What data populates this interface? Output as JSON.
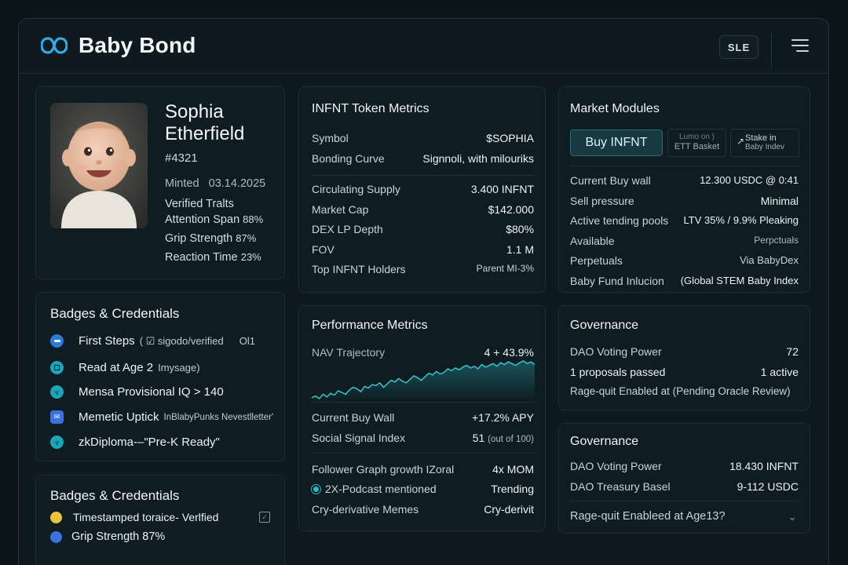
{
  "app": {
    "title": "Baby Bond",
    "sle_label": "SLE"
  },
  "profile": {
    "first_name": "Sophia",
    "last_name": "Etherfield",
    "token_id": "#4321",
    "minted_label": "Minted",
    "minted_date": "03.14.2025",
    "verified_traits": "Verified Tralts",
    "traits": [
      {
        "label": "Attention Span",
        "value": "88%"
      },
      {
        "label": "Grip Strength",
        "value": "87%"
      },
      {
        "label": "Reaction Time",
        "value": "23%"
      }
    ]
  },
  "badges": {
    "title": "Badges & Credentials",
    "items": [
      {
        "label": "First Steps",
        "sub": "( ☑ sigodo/verified",
        "extra": "Ol1",
        "color": "#2b7bd8"
      },
      {
        "label": "Read at Age 2",
        "sub": "Imysage)",
        "color": "#1fa3b8"
      },
      {
        "label": "Mensa Provisional IQ > 140",
        "sub": "",
        "color": "#1fa3b8"
      },
      {
        "label": "Memetic Uptick",
        "sub": "InBlabyPunks Nevestlletter'",
        "color": "#3b72e0"
      },
      {
        "label": "zkDiploma-–\"Pre-K Ready\"",
        "sub": "",
        "color": "#1fa3b8"
      }
    ]
  },
  "badges2": {
    "title": "Badges & Credentials",
    "items": [
      {
        "label": "Timestamped toraice- Verlfied",
        "color": "#e8c441"
      },
      {
        "label": "Grip Strength",
        "value": "87%",
        "color": "#3b72e0"
      }
    ]
  },
  "token_metrics": {
    "title": "INFNT Token Metrics",
    "top_rows": [
      {
        "label": "Symbol",
        "value": "$SOPHIA"
      },
      {
        "label": "Bonding Curve",
        "value": "Signnoli, with milouriks"
      }
    ],
    "rows": [
      {
        "label": "Circulating Supply",
        "value": "3.400 INFNT"
      },
      {
        "label": "Market Cap",
        "value": "$142.000"
      },
      {
        "label": "DEX LP Depth",
        "value": "$80%"
      },
      {
        "label": "FOV",
        "value": "1.1 M"
      },
      {
        "label": "Top INFNT Holders",
        "value": "Parent MI-3%"
      }
    ]
  },
  "performance": {
    "title": "Performance Metrics",
    "nav_label": "NAV Trajectory",
    "nav_value": "4 + 43.9%",
    "nav_series": [
      10,
      12,
      9,
      14,
      11,
      15,
      13,
      18,
      16,
      14,
      19,
      22,
      20,
      17,
      23,
      21,
      25,
      24,
      27,
      22,
      26,
      30,
      28,
      32,
      29,
      27,
      31,
      35,
      33,
      30,
      34,
      38,
      36,
      40,
      37,
      39,
      43,
      41,
      44,
      42,
      45,
      47,
      44,
      46,
      43,
      48,
      45,
      47,
      49,
      46,
      50,
      48,
      51,
      49,
      47,
      50,
      52,
      49,
      51,
      48
    ],
    "rows": [
      {
        "label": "Current Buy Wall",
        "value": "+17.2% APY"
      },
      {
        "label": "Social Signal Index",
        "value": "51",
        "value_note": "(out of 100)"
      }
    ],
    "rows2": [
      {
        "label": "Follower Graph growth IZoral",
        "value": "4x MOM"
      },
      {
        "label": "2X-Podcast mentioned",
        "value": "Trending"
      },
      {
        "label": "Cry-derivative Memes",
        "value": "Cry-derivit"
      }
    ]
  },
  "market": {
    "title": "Market Modules",
    "buy_label": "Buy INFNT",
    "btn2_line1": "Lumo on )",
    "btn2_line2": "ETT Basket",
    "btn3_line1": "Stake in",
    "btn3_line2": "Baby Indev",
    "rows": [
      {
        "label": "Current Buy wall",
        "value": "12.300 USDC @ 0:41"
      },
      {
        "label": "Sell pressure",
        "value": "Minimal"
      },
      {
        "label": "Active tending pools",
        "value": "LTV 35% / 9.9% Pleaking"
      },
      {
        "label": "Available",
        "value": "Perpctuals"
      },
      {
        "label": "Perpetuals",
        "value": "Via BabyDex"
      },
      {
        "label": "Baby Fund Inlucion",
        "value": "(Global STEM Baby Index"
      }
    ]
  },
  "governance1": {
    "title": "Governance",
    "rows": [
      {
        "label": "DAO Voting Power",
        "value": "72"
      },
      {
        "label": "1 proposals passed",
        "value": "1 active"
      }
    ],
    "ragequit": "Rage-quit Enabled at (Pending Oracle Review)"
  },
  "governance2": {
    "title": "Governance",
    "rows": [
      {
        "label": "DAO Voting Power",
        "value": "18.430 INFNT"
      },
      {
        "label": "DAO Treasury Basel",
        "value": "9-112 USDC"
      }
    ],
    "ragequit": "Rage-quit Enableed at Age13?"
  }
}
